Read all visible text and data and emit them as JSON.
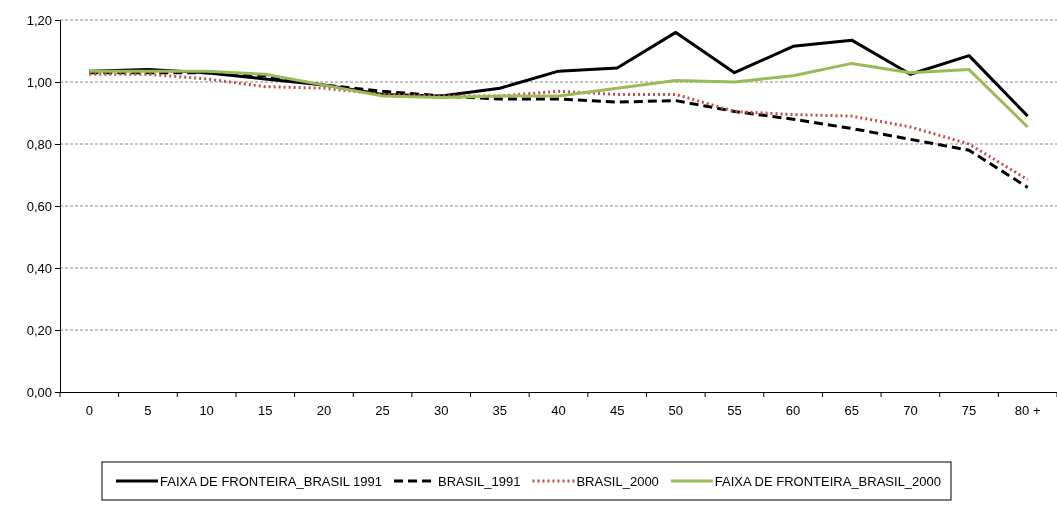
{
  "chart_data": {
    "type": "line",
    "categories": [
      "0",
      "5",
      "10",
      "15",
      "20",
      "25",
      "30",
      "35",
      "40",
      "45",
      "50",
      "55",
      "60",
      "65",
      "70",
      "75",
      "80 +"
    ],
    "ylim": [
      0,
      1.2
    ],
    "yticks": [
      {
        "value": 0,
        "label": "0,00"
      },
      {
        "value": 0.2,
        "label": "0,20"
      },
      {
        "value": 0.4,
        "label": "0,40"
      },
      {
        "value": 0.6,
        "label": "0,60"
      },
      {
        "value": 0.8,
        "label": "0,80"
      },
      {
        "value": 1,
        "label": "1,00"
      },
      {
        "value": 1.2,
        "label": "1,20"
      }
    ],
    "grid": "y",
    "legend": "bottom",
    "marker": "none",
    "series": [
      {
        "name": "FAIXA DE FRONTEIRA_BRASIL 1991",
        "color": "#000000",
        "line_style": "solid",
        "values": [
          1.035,
          1.04,
          1.03,
          1.01,
          0.99,
          0.96,
          0.955,
          0.98,
          1.035,
          1.045,
          1.16,
          1.03,
          1.115,
          1.135,
          1.025,
          1.085,
          0.89
        ]
      },
      {
        "name": "BRASIL_1991",
        "color": "#000000",
        "line_style": "dashed",
        "values": [
          1.03,
          1.03,
          1.03,
          1.02,
          0.99,
          0.97,
          0.955,
          0.945,
          0.945,
          0.935,
          0.94,
          0.905,
          0.88,
          0.85,
          0.815,
          0.78,
          0.66
        ]
      },
      {
        "name": "BRASIL_2000",
        "color": "#c0504d",
        "line_style": "dotted",
        "values": [
          1.025,
          1.025,
          1.01,
          0.985,
          0.98,
          0.96,
          0.955,
          0.955,
          0.97,
          0.96,
          0.96,
          0.905,
          0.895,
          0.89,
          0.855,
          0.8,
          0.685
        ]
      },
      {
        "name": "FAIXA DE FRONTEIRA_BRASIL_2000",
        "color": "#9bbb59",
        "line_style": "solid",
        "values": [
          1.035,
          1.035,
          1.035,
          1.025,
          0.99,
          0.955,
          0.95,
          0.955,
          0.955,
          0.98,
          1.005,
          1.0,
          1.02,
          1.06,
          1.03,
          1.04,
          0.855
        ]
      }
    ]
  }
}
